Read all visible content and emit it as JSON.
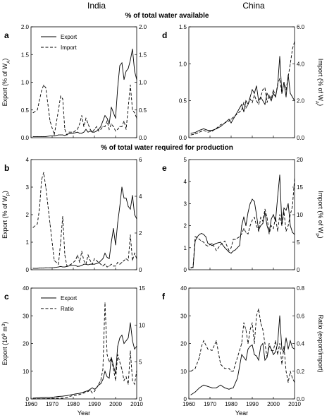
{
  "column_titles": [
    "India",
    "China"
  ],
  "row_titles": [
    "% of total water available",
    "% of total water required for production"
  ],
  "chart_data": [
    {
      "panel": "a",
      "type": "line",
      "ylabel_left": "Export (% of W_A)",
      "ylabel_right": "",
      "ylim_left": [
        0,
        2.0
      ],
      "ylim_right": [
        0,
        2.0
      ],
      "xlim": [
        1960,
        2010
      ],
      "yticks_left": [
        "0.0",
        "0.5",
        "1.0",
        "1.5",
        "2.0"
      ],
      "yticks_right": [
        "0.0",
        "0.5",
        "1.0",
        "1.5",
        "2.0"
      ],
      "legend": [
        "Export",
        "Import"
      ],
      "x": [
        1961,
        1963,
        1965,
        1966,
        1967,
        1969,
        1971,
        1973,
        1974,
        1975,
        1976,
        1977,
        1978,
        1980,
        1982,
        1983,
        1984,
        1985,
        1986,
        1987,
        1988,
        1989,
        1990,
        1991,
        1992,
        1993,
        1994,
        1995,
        1996,
        1997,
        1998,
        1999,
        2000,
        2001,
        2002,
        2003,
        2004,
        2005,
        2006,
        2007,
        2008,
        2009,
        2010
      ],
      "series": [
        {
          "name": "Export",
          "axis": "left",
          "style": "solid",
          "values": [
            0.02,
            0.02,
            0.02,
            0.02,
            0.02,
            0.03,
            0.03,
            0.05,
            0.05,
            0.05,
            0.04,
            0.06,
            0.07,
            0.08,
            0.1,
            0.08,
            0.08,
            0.1,
            0.15,
            0.1,
            0.12,
            0.1,
            0.1,
            0.12,
            0.15,
            0.2,
            0.3,
            0.4,
            0.35,
            0.25,
            0.55,
            0.45,
            0.35,
            0.9,
            1.3,
            1.35,
            1.05,
            1.2,
            1.25,
            1.4,
            1.6,
            1.2,
            1.05
          ]
        },
        {
          "name": "Import",
          "axis": "right",
          "style": "dashed",
          "values": [
            0.45,
            0.5,
            0.85,
            0.95,
            0.9,
            0.3,
            0.05,
            0.5,
            0.75,
            0.7,
            0.15,
            0.05,
            0.1,
            0.1,
            0.15,
            0.25,
            0.4,
            0.2,
            0.35,
            0.25,
            0.15,
            0.1,
            0.15,
            0.2,
            0.12,
            0.15,
            0.2,
            0.2,
            0.3,
            0.15,
            0.25,
            0.2,
            0.12,
            0.15,
            0.2,
            0.2,
            0.3,
            0.15,
            0.55,
            0.95,
            0.5,
            0.45,
            0.35
          ]
        }
      ]
    },
    {
      "panel": "d",
      "type": "line",
      "ylabel_left": "",
      "ylabel_right": "Import (% of W_A)",
      "ylim_left": [
        0,
        1.5
      ],
      "ylim_right": [
        0,
        6.0
      ],
      "xlim": [
        1960,
        2010
      ],
      "yticks_left": [
        "0.0",
        "0.5",
        "1.0",
        "1.5"
      ],
      "yticks_right": [
        "0.0",
        "2.0",
        "4.0",
        "6.0"
      ],
      "x": [
        1961,
        1963,
        1965,
        1967,
        1969,
        1971,
        1973,
        1975,
        1977,
        1979,
        1980,
        1982,
        1984,
        1985,
        1986,
        1987,
        1988,
        1989,
        1990,
        1991,
        1992,
        1993,
        1994,
        1995,
        1996,
        1997,
        1998,
        1999,
        2000,
        2001,
        2002,
        2003,
        2004,
        2005,
        2006,
        2007,
        2008,
        2009,
        2010
      ],
      "series": [
        {
          "name": "Export",
          "axis": "left",
          "style": "solid",
          "values": [
            0.06,
            0.07,
            0.1,
            0.12,
            0.1,
            0.1,
            0.12,
            0.15,
            0.2,
            0.25,
            0.2,
            0.3,
            0.4,
            0.45,
            0.35,
            0.5,
            0.45,
            0.55,
            0.65,
            0.6,
            0.7,
            0.5,
            0.55,
            0.5,
            0.45,
            0.6,
            0.55,
            0.5,
            0.6,
            0.55,
            0.7,
            1.1,
            0.6,
            0.75,
            0.55,
            0.85,
            0.6,
            0.55,
            0.5
          ]
        },
        {
          "name": "Import",
          "axis": "right",
          "style": "dashed",
          "values": [
            0.15,
            0.2,
            0.3,
            0.4,
            0.3,
            0.35,
            0.5,
            0.7,
            0.8,
            0.9,
            1.0,
            1.2,
            1.4,
            1.5,
            1.9,
            1.6,
            1.8,
            2.1,
            1.9,
            2.3,
            2.0,
            1.8,
            2.2,
            2.6,
            2.7,
            1.9,
            2.3,
            2.1,
            2.6,
            2.2,
            2.9,
            3.2,
            2.4,
            3.0,
            2.6,
            3.3,
            4.0,
            4.8,
            5.2
          ]
        }
      ]
    },
    {
      "panel": "b",
      "type": "line",
      "ylabel_left": "Export (% of W_P)",
      "ylabel_right": "",
      "ylim_left": [
        0,
        4
      ],
      "ylim_right": [
        0,
        6
      ],
      "xlim": [
        1960,
        2010
      ],
      "yticks_left": [
        "0",
        "1",
        "2",
        "3",
        "4"
      ],
      "yticks_right": [
        "0",
        "2",
        "4",
        "6"
      ],
      "x": [
        1961,
        1963,
        1964,
        1965,
        1966,
        1967,
        1969,
        1971,
        1973,
        1974,
        1975,
        1976,
        1977,
        1979,
        1981,
        1982,
        1983,
        1984,
        1985,
        1986,
        1987,
        1988,
        1989,
        1990,
        1992,
        1994,
        1995,
        1996,
        1997,
        1998,
        1999,
        2000,
        2001,
        2002,
        2003,
        2004,
        2005,
        2006,
        2007,
        2008,
        2009,
        2010
      ],
      "series": [
        {
          "name": "Export",
          "axis": "left",
          "style": "solid",
          "values": [
            0.05,
            0.05,
            0.06,
            0.06,
            0.06,
            0.07,
            0.07,
            0.08,
            0.1,
            0.12,
            0.1,
            0.1,
            0.12,
            0.15,
            0.15,
            0.12,
            0.13,
            0.15,
            0.2,
            0.2,
            0.18,
            0.2,
            0.2,
            0.2,
            0.25,
            0.4,
            0.6,
            0.45,
            0.4,
            1.0,
            1.5,
            0.9,
            1.7,
            2.3,
            3.0,
            2.6,
            2.6,
            2.3,
            2.2,
            2.7,
            2.0,
            1.85
          ]
        },
        {
          "name": "Import",
          "axis": "right",
          "style": "dashed",
          "values": [
            2.3,
            2.5,
            3.3,
            4.9,
            5.3,
            4.5,
            2.5,
            0.5,
            0.3,
            1.5,
            2.9,
            0.8,
            0.2,
            0.3,
            0.5,
            0.8,
            0.4,
            1.0,
            0.5,
            0.3,
            0.8,
            0.5,
            0.3,
            0.6,
            0.4,
            0.2,
            0.3,
            0.15,
            0.2,
            0.3,
            0.2,
            0.2,
            0.4,
            0.3,
            0.4,
            0.5,
            0.6,
            0.5,
            1.9,
            0.5,
            0.9,
            0.6
          ]
        }
      ]
    },
    {
      "panel": "e",
      "type": "line",
      "ylabel_left": "",
      "ylabel_right": "Import (% of W_P)",
      "ylim_left": [
        0,
        5
      ],
      "ylim_right": [
        0,
        20
      ],
      "xlim": [
        1960,
        2010
      ],
      "yticks_left": [
        "0",
        "1",
        "2",
        "3",
        "4",
        "5"
      ],
      "yticks_right": [
        "0",
        "5",
        "10",
        "15",
        "20"
      ],
      "x": [
        1961,
        1962,
        1963,
        1964,
        1965,
        1966,
        1967,
        1968,
        1969,
        1971,
        1973,
        1975,
        1977,
        1979,
        1980,
        1981,
        1982,
        1984,
        1985,
        1986,
        1987,
        1988,
        1989,
        1990,
        1991,
        1992,
        1993,
        1994,
        1995,
        1996,
        1997,
        1998,
        1999,
        2000,
        2001,
        2002,
        2003,
        2004,
        2005,
        2006,
        2007,
        2008,
        2009,
        2010
      ],
      "series": [
        {
          "name": "Export",
          "axis": "left",
          "style": "solid",
          "values": [
            0.1,
            0.1,
            1.3,
            1.5,
            1.6,
            1.65,
            1.6,
            1.5,
            1.2,
            1.1,
            1.2,
            1.25,
            1.0,
            0.8,
            0.75,
            0.85,
            0.9,
            1.1,
            2.0,
            2.4,
            2.0,
            2.6,
            3.0,
            3.2,
            3.1,
            2.5,
            1.8,
            2.0,
            2.1,
            2.6,
            2.0,
            1.7,
            2.3,
            2.5,
            2.2,
            3.3,
            4.3,
            2.1,
            2.8,
            2.7,
            3.0,
            2.0,
            1.7,
            1.6
          ]
        },
        {
          "name": "Import",
          "axis": "right",
          "style": "dashed",
          "values": [
            0.3,
            0.5,
            6.0,
            5.8,
            5.5,
            5.2,
            5.0,
            4.5,
            4.3,
            4.8,
            3.5,
            4.5,
            5.2,
            3.5,
            4.0,
            5.5,
            5.5,
            6.0,
            6.5,
            7.5,
            6.8,
            6.5,
            8.0,
            9.0,
            9.5,
            8.0,
            7.0,
            9.5,
            8.8,
            11.0,
            9.5,
            6.5,
            8.0,
            7.5,
            9.5,
            7.0,
            10.0,
            8.0,
            10.5,
            7.0,
            8.0,
            10.0,
            11.5,
            16.5
          ]
        }
      ]
    },
    {
      "panel": "c",
      "type": "line",
      "xlabel": "Year",
      "ylabel_left": "Export (10^9 m^3)",
      "ylabel_right": "",
      "ylim_left": [
        0,
        40
      ],
      "ylim_right": [
        0,
        15
      ],
      "xlim": [
        1960,
        2010
      ],
      "xticks": [
        "1960",
        "1970",
        "1980",
        "1990",
        "2000",
        "2010"
      ],
      "yticks_left": [
        "0",
        "10",
        "20",
        "30",
        "40"
      ],
      "yticks_right": [
        "0",
        "5",
        "10",
        "15"
      ],
      "legend": [
        "Export",
        "Ratio"
      ],
      "x": [
        1961,
        1963,
        1965,
        1967,
        1969,
        1971,
        1973,
        1975,
        1977,
        1979,
        1981,
        1983,
        1985,
        1987,
        1988,
        1989,
        1990,
        1991,
        1992,
        1993,
        1994,
        1995,
        1996,
        1997,
        1998,
        1999,
        2000,
        2001,
        2002,
        2003,
        2004,
        2005,
        2006,
        2007,
        2008,
        2009,
        2010
      ],
      "series": [
        {
          "name": "Export",
          "axis": "left",
          "style": "solid",
          "values": [
            0.3,
            0.4,
            0.5,
            0.6,
            0.6,
            0.7,
            0.9,
            1.0,
            1.2,
            1.5,
            1.8,
            2.0,
            2.5,
            3.0,
            3.5,
            4.0,
            3.5,
            4.0,
            5.0,
            5.5,
            7.0,
            10.0,
            8.0,
            7.5,
            15.0,
            12.0,
            9.0,
            19.0,
            22.0,
            23.0,
            20.0,
            21.0,
            22.0,
            27.5,
            21.0,
            18.0,
            19.0
          ]
        },
        {
          "name": "Ratio",
          "axis": "right",
          "style": "dashed",
          "values": [
            0.02,
            0.03,
            0.03,
            0.05,
            0.05,
            0.08,
            0.1,
            0.1,
            0.2,
            0.4,
            0.5,
            0.6,
            0.8,
            1.0,
            1.2,
            0.8,
            1.0,
            1.5,
            2.0,
            2.5,
            4.0,
            13.0,
            6.0,
            5.0,
            5.5,
            4.0,
            2.5,
            6.0,
            5.0,
            4.0,
            2.5,
            3.0,
            2.0,
            6.5,
            2.5,
            2.0,
            3.8
          ]
        }
      ]
    },
    {
      "panel": "f",
      "type": "line",
      "xlabel": "Year",
      "ylabel_left": "",
      "ylabel_right": "Ratio (export/import)",
      "ylim_left": [
        0,
        40
      ],
      "ylim_right": [
        0,
        0.8
      ],
      "xlim": [
        1960,
        2010
      ],
      "xticks": [
        "1960",
        "1970",
        "1980",
        "1990",
        "2000",
        "2010"
      ],
      "yticks_left": [
        "0",
        "10",
        "20",
        "30",
        "40"
      ],
      "yticks_right": [
        "0.0",
        "0.2",
        "0.4",
        "0.6",
        "0.8"
      ],
      "x": [
        1961,
        1963,
        1965,
        1966,
        1967,
        1969,
        1971,
        1973,
        1975,
        1977,
        1979,
        1980,
        1981,
        1983,
        1985,
        1986,
        1987,
        1988,
        1989,
        1990,
        1991,
        1992,
        1993,
        1994,
        1995,
        1996,
        1997,
        1998,
        1999,
        2000,
        2001,
        2002,
        2003,
        2004,
        2005,
        2006,
        2007,
        2008,
        2009,
        2010
      ],
      "series": [
        {
          "name": "Export",
          "axis": "left",
          "style": "solid",
          "values": [
            1.5,
            2.5,
            4.0,
            4.5,
            5.0,
            4.5,
            4.0,
            4.0,
            5.0,
            4.0,
            3.5,
            3.8,
            4.0,
            7.5,
            16.0,
            15.0,
            14.0,
            18.0,
            19.0,
            19.5,
            16.0,
            15.5,
            14.0,
            19.0,
            20.0,
            14.0,
            15.0,
            19.0,
            18.0,
            16.0,
            17.0,
            20.0,
            30.0,
            18.0,
            17.0,
            22.0,
            18.0,
            21.0,
            18.5,
            18.0
          ]
        },
        {
          "name": "Ratio",
          "axis": "right",
          "style": "dashed",
          "values": [
            0.2,
            0.22,
            0.3,
            0.38,
            0.42,
            0.36,
            0.35,
            0.42,
            0.25,
            0.22,
            0.22,
            0.2,
            0.2,
            0.3,
            0.4,
            0.55,
            0.5,
            0.4,
            0.5,
            0.55,
            0.4,
            0.6,
            0.65,
            0.55,
            0.5,
            0.4,
            0.3,
            0.4,
            0.35,
            0.35,
            0.42,
            0.32,
            0.4,
            0.25,
            0.38,
            0.2,
            0.12,
            0.2,
            0.15,
            0.12
          ]
        }
      ]
    }
  ]
}
